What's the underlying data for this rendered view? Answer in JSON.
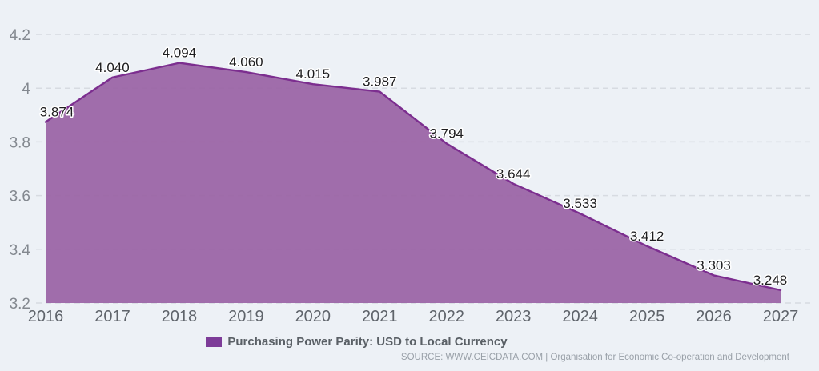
{
  "chart_data": {
    "type": "area",
    "title": "",
    "categories": [
      "2016",
      "2017",
      "2018",
      "2019",
      "2020",
      "2021",
      "2022",
      "2023",
      "2024",
      "2025",
      "2026",
      "2027"
    ],
    "series": [
      {
        "name": "Purchasing Power Parity: USD to Local Currency",
        "values": [
          3.874,
          4.04,
          4.094,
          4.06,
          4.015,
          3.987,
          3.794,
          3.644,
          3.533,
          3.412,
          3.303,
          3.248
        ],
        "value_labels": [
          "3.874",
          "4.040",
          "4.094",
          "4.060",
          "4.015",
          "3.987",
          "3.794",
          "3.644",
          "3.533",
          "3.412",
          "3.303",
          "3.248"
        ]
      }
    ],
    "xlabel": "",
    "ylabel": "",
    "ylim": [
      3.2,
      4.2
    ],
    "yticks": {
      "values": [
        4.2,
        4.0,
        3.8,
        3.6,
        3.4,
        3.2
      ],
      "labels": [
        "4.2",
        "4",
        "3.8",
        "3.6",
        "3.4",
        "3.2"
      ]
    },
    "grid": "horizontal-dashed",
    "legend_position": "bottom",
    "colors": {
      "background": "#EDF1F6",
      "area_fill": "#9A63A5",
      "line": "#7C2E8F",
      "grid": "#D7DBE1",
      "y_axis_text": "#83888F",
      "x_axis_text": "#5F646B",
      "data_label_text": "#1D1D1F"
    }
  },
  "legend": {
    "label": "Purchasing Power Parity: USD to Local Currency",
    "swatch_color": "#7D3C98"
  },
  "source": {
    "text": "SOURCE: WWW.CEICDATA.COM | Organisation for Economic Co-operation and Development"
  }
}
